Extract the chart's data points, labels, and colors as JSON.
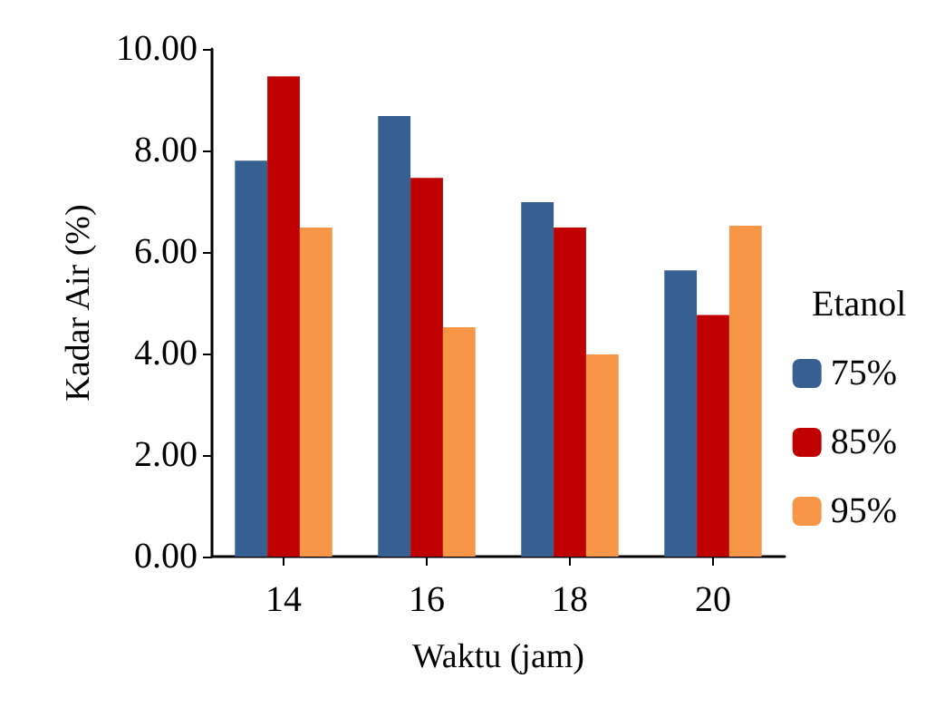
{
  "chart_data": {
    "type": "bar",
    "xlabel": "Waktu (jam)",
    "ylabel": "Kadar Air (%)",
    "legend_title": "Etanol",
    "categories": [
      "14",
      "16",
      "18",
      "20"
    ],
    "series": [
      {
        "name": "75%",
        "color": "#376092",
        "values": [
          7.8,
          8.68,
          6.98,
          5.64
        ]
      },
      {
        "name": "85%",
        "color": "#c00000",
        "values": [
          9.46,
          7.46,
          6.48,
          4.76
        ]
      },
      {
        "name": "95%",
        "color": "#f79646",
        "values": [
          6.48,
          4.52,
          3.98,
          6.52
        ]
      }
    ],
    "ylim": [
      0,
      10
    ],
    "yticks": [
      {
        "value": 0,
        "label": "0.00"
      },
      {
        "value": 2,
        "label": "2.00"
      },
      {
        "value": 4,
        "label": "4.00"
      },
      {
        "value": 6,
        "label": "6.00"
      },
      {
        "value": 8,
        "label": "8.00"
      },
      {
        "value": 10,
        "label": "10.00"
      }
    ],
    "grid": false,
    "legend": "right"
  }
}
